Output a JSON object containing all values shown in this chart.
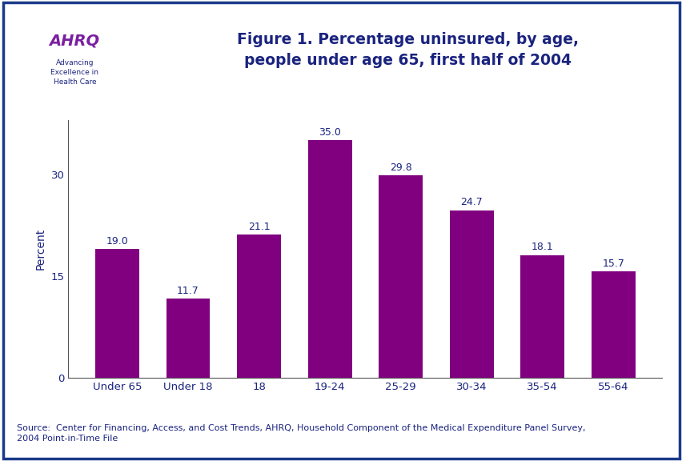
{
  "categories": [
    "Under 65",
    "Under 18",
    "18",
    "19-24",
    "25-29",
    "30-34",
    "35-54",
    "55-64"
  ],
  "values": [
    19.0,
    11.7,
    21.1,
    35.0,
    29.8,
    24.7,
    18.1,
    15.7
  ],
  "bar_color": "#800080",
  "title_line1": "Figure 1. Percentage uninsured, by age,",
  "title_line2": "people under age 65, first half of 2004",
  "ylabel": "Percent",
  "yticks": [
    0,
    15,
    30
  ],
  "ylim": [
    0,
    38
  ],
  "source_text": "Source:  Center for Financing, Access, and Cost Trends, AHRQ, Household Component of the Medical Expenditure Panel Survey,\n2004 Point-in-Time File",
  "bg_color": "#ffffff",
  "title_color": "#1a237e",
  "bar_label_color": "#1a237e",
  "header_bar_color": "#1a3a8a",
  "tick_label_color": "#1a237e",
  "ylabel_color": "#1a237e",
  "source_color": "#1a237e",
  "border_color": "#1a3a8a",
  "logo_bg": "#4a90c8",
  "logo_text": "AHRQ",
  "logo_subtext": "Advancing\nExcellence in\nHealth Care"
}
